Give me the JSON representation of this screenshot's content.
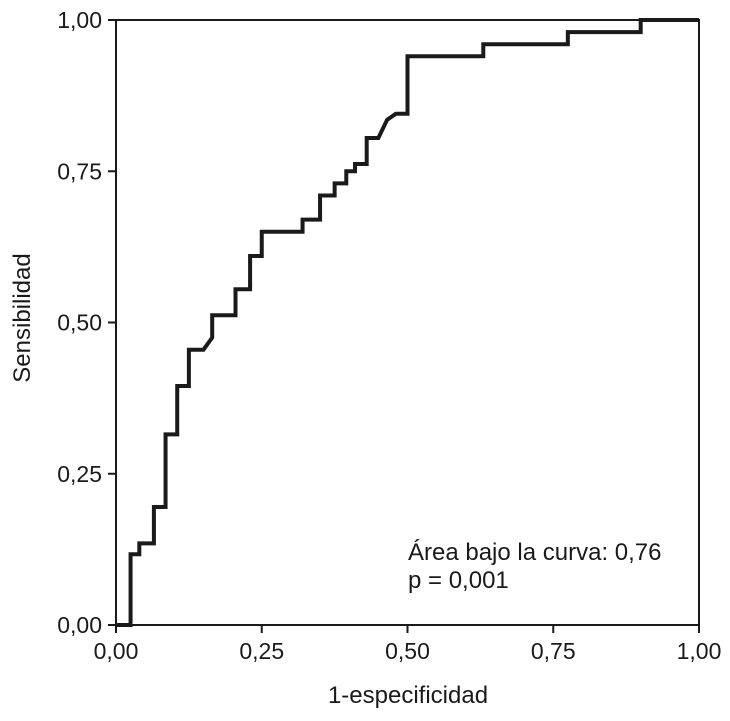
{
  "chart_data": {
    "type": "line",
    "title": "",
    "xlabel": "1-especificidad",
    "ylabel": "Sensibilidad",
    "xlim": [
      0,
      1
    ],
    "ylim": [
      0,
      1
    ],
    "x_ticks": [
      {
        "value": 0,
        "label": "0,00"
      },
      {
        "value": 0.25,
        "label": "0,25"
      },
      {
        "value": 0.5,
        "label": "0,50"
      },
      {
        "value": 0.75,
        "label": "0,75"
      },
      {
        "value": 1,
        "label": "1,00"
      }
    ],
    "y_ticks": [
      {
        "value": 0,
        "label": "0,00"
      },
      {
        "value": 0.25,
        "label": "0,25"
      },
      {
        "value": 0.5,
        "label": "0,50"
      },
      {
        "value": 0.75,
        "label": "0,75"
      },
      {
        "value": 1,
        "label": "1,00"
      }
    ],
    "grid": false,
    "legend": "none",
    "line_color": "#1a1a1a",
    "series": [
      {
        "points": [
          [
            0.0,
            0.0
          ],
          [
            0.025,
            0.0
          ],
          [
            0.025,
            0.117
          ],
          [
            0.04,
            0.117
          ],
          [
            0.04,
            0.135
          ],
          [
            0.065,
            0.135
          ],
          [
            0.065,
            0.195
          ],
          [
            0.085,
            0.195
          ],
          [
            0.085,
            0.315
          ],
          [
            0.105,
            0.315
          ],
          [
            0.105,
            0.395
          ],
          [
            0.125,
            0.395
          ],
          [
            0.125,
            0.455
          ],
          [
            0.15,
            0.455
          ],
          [
            0.165,
            0.475
          ],
          [
            0.165,
            0.512
          ],
          [
            0.205,
            0.512
          ],
          [
            0.205,
            0.555
          ],
          [
            0.23,
            0.555
          ],
          [
            0.23,
            0.61
          ],
          [
            0.25,
            0.61
          ],
          [
            0.25,
            0.65
          ],
          [
            0.32,
            0.65
          ],
          [
            0.32,
            0.67
          ],
          [
            0.35,
            0.67
          ],
          [
            0.35,
            0.71
          ],
          [
            0.375,
            0.71
          ],
          [
            0.375,
            0.73
          ],
          [
            0.395,
            0.73
          ],
          [
            0.395,
            0.75
          ],
          [
            0.41,
            0.75
          ],
          [
            0.41,
            0.762
          ],
          [
            0.43,
            0.762
          ],
          [
            0.43,
            0.805
          ],
          [
            0.45,
            0.805
          ],
          [
            0.465,
            0.835
          ],
          [
            0.48,
            0.845
          ],
          [
            0.5,
            0.845
          ],
          [
            0.5,
            0.94
          ],
          [
            0.63,
            0.94
          ],
          [
            0.63,
            0.96
          ],
          [
            0.775,
            0.96
          ],
          [
            0.775,
            0.98
          ],
          [
            0.9,
            0.98
          ],
          [
            0.9,
            1.0
          ],
          [
            1.0,
            1.0
          ]
        ]
      }
    ],
    "annotations": [
      "Área bajo la curva: 0,76",
      "p = 0,001"
    ]
  }
}
